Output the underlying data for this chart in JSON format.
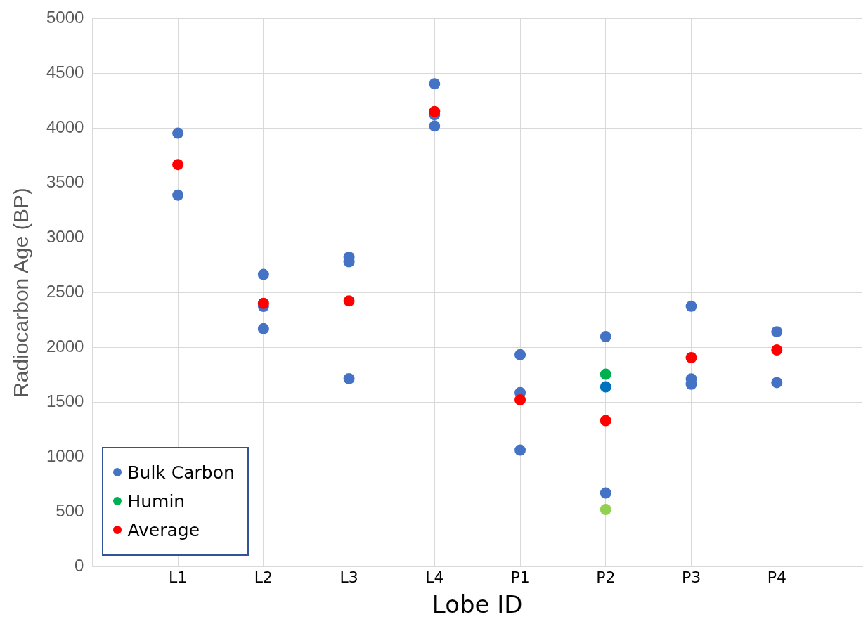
{
  "chart_data": {
    "type": "scatter",
    "xlabel": "Lobe ID",
    "ylabel": "Radiocarbon Age (BP)",
    "categories": [
      "L1",
      "L2",
      "L3",
      "L4",
      "P1",
      "P2",
      "P3",
      "P4"
    ],
    "series": [
      {
        "name": "Bulk Carbon",
        "color": "#4472c4",
        "x": [
          "L1",
          "L1",
          "L2",
          "L2",
          "L2",
          "L3",
          "L3",
          "L3",
          "L4",
          "L4",
          "L4",
          "P1",
          "P1",
          "P1",
          "P2",
          "P2",
          "P3",
          "P3",
          "P3",
          "P4",
          "P4"
        ],
        "values": [
          3955,
          3390,
          2667,
          2375,
          2172,
          2824,
          2782,
          1716,
          4405,
          4123,
          4020,
          1935,
          1589,
          1065,
          2100,
          674,
          2377,
          1714,
          1666,
          2144,
          1681
        ]
      },
      {
        "name": "Humin",
        "color": "#00b050",
        "x": [
          "P2"
        ],
        "values": [
          1757
        ]
      },
      {
        "color": "#0070c0",
        "x": [
          "P2"
        ],
        "values": [
          1642
        ]
      },
      {
        "color": "#92d050",
        "x": [
          "P2"
        ],
        "values": [
          524
        ]
      },
      {
        "name": "Average",
        "color": "#ff0000",
        "x": [
          "L1",
          "L2",
          "L3",
          "L4",
          "P1",
          "P2",
          "P3",
          "P4"
        ],
        "values": [
          3669,
          2403,
          2425,
          4152,
          1524,
          1334,
          1908,
          1978
        ]
      }
    ],
    "ylim": [
      0,
      5000
    ],
    "yticks": [
      0,
      500,
      1000,
      1500,
      2000,
      2500,
      3000,
      3500,
      4000,
      4500,
      5000
    ],
    "grid": true,
    "legend": "bottom left",
    "marker": "circle"
  }
}
